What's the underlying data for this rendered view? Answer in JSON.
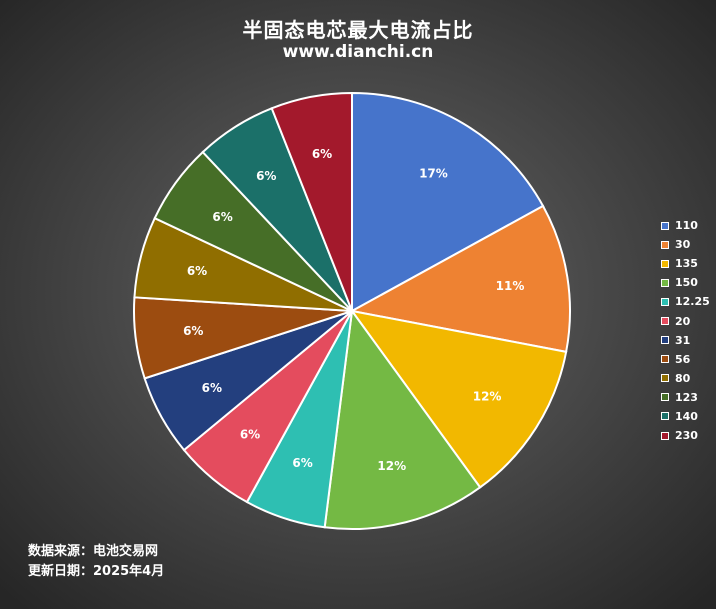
{
  "chart_data": {
    "type": "pie",
    "title": "半固态电芯最大电流占比",
    "subtitle": "www.dianchi.cn",
    "legend_position": "right",
    "slices": [
      {
        "label": "110",
        "value": 17,
        "display": "17%",
        "color": "#4674CB"
      },
      {
        "label": "30",
        "value": 11,
        "display": "11%",
        "color": "#EE8232"
      },
      {
        "label": "135",
        "value": 12,
        "display": "12%",
        "color": "#F2B800"
      },
      {
        "label": "150",
        "value": 12,
        "display": "12%",
        "color": "#74B944"
      },
      {
        "label": "12.25",
        "value": 6,
        "display": "6%",
        "color": "#2EBFB2"
      },
      {
        "label": "20",
        "value": 6,
        "display": "6%",
        "color": "#E44C5E"
      },
      {
        "label": "31",
        "value": 6,
        "display": "6%",
        "color": "#233F7E"
      },
      {
        "label": "56",
        "value": 6,
        "display": "6%",
        "color": "#9C4C10"
      },
      {
        "label": "80",
        "value": 6,
        "display": "6%",
        "color": "#906E00"
      },
      {
        "label": "123",
        "value": 6,
        "display": "6%",
        "color": "#466E27"
      },
      {
        "label": "140",
        "value": 6,
        "display": "6%",
        "color": "#1B7069"
      },
      {
        "label": "230",
        "value": 6,
        "display": "6%",
        "color": "#A3192C"
      }
    ]
  },
  "footer": {
    "source": "数据来源：电池交易网",
    "updated": "更新日期：2025年4月"
  }
}
